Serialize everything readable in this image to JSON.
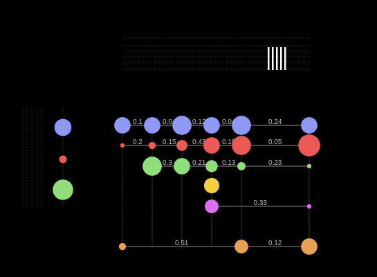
{
  "chart_data": {
    "type": "scatter",
    "title": "",
    "xlabel": "",
    "ylabel": "",
    "columns": 7,
    "rows": [
      {
        "color": "#8f98f5",
        "points": [
          {
            "col": 0,
            "size": 3
          },
          {
            "col": 1,
            "size": 3
          },
          {
            "col": 2,
            "size": 3.5
          },
          {
            "col": 3,
            "size": 3
          },
          {
            "col": 4,
            "size": 3.5
          },
          {
            "col": 6,
            "size": 3
          }
        ],
        "edges": [
          {
            "from": 0,
            "to": 1,
            "label": "0.1"
          },
          {
            "from": 1,
            "to": 2,
            "label": "0.04"
          },
          {
            "from": 2,
            "to": 3,
            "label": "0.12"
          },
          {
            "from": 3,
            "to": 4,
            "label": "0.04"
          },
          {
            "from": 4,
            "to": 6,
            "label": "0.24"
          }
        ]
      },
      {
        "color": "#ec5a57",
        "points": [
          {
            "col": 0,
            "size": 0.8
          },
          {
            "col": 1,
            "size": 1.3
          },
          {
            "col": 2,
            "size": 2
          },
          {
            "col": 3,
            "size": 3
          },
          {
            "col": 4,
            "size": 3.5
          },
          {
            "col": 6,
            "size": 4
          }
        ],
        "edges": [
          {
            "from": 0,
            "to": 1,
            "label": "0.2"
          },
          {
            "from": 1,
            "to": 2,
            "label": "0.15"
          },
          {
            "from": 2,
            "to": 3,
            "label": "0.43"
          },
          {
            "from": 3,
            "to": 4,
            "label": "0.19"
          },
          {
            "from": 4,
            "to": 6,
            "label": "0.05"
          }
        ]
      },
      {
        "color": "#90de7a",
        "points": [
          {
            "col": 1,
            "size": 3.5
          },
          {
            "col": 2,
            "size": 3
          },
          {
            "col": 3,
            "size": 2.2
          },
          {
            "col": 4,
            "size": 1.5
          },
          {
            "col": 6,
            "size": 0.8
          }
        ],
        "edges": [
          {
            "from": 1,
            "to": 2,
            "label": "0.3"
          },
          {
            "from": 2,
            "to": 3,
            "label": "0.21"
          },
          {
            "from": 3,
            "to": 4,
            "label": "0.13"
          },
          {
            "from": 4,
            "to": 6,
            "label": "0.23"
          }
        ]
      },
      {
        "color": "#f4d03f",
        "points": [
          {
            "col": 3,
            "size": 2.8
          }
        ],
        "edges": []
      },
      {
        "color": "#df6ef2",
        "points": [
          {
            "col": 3,
            "size": 2.5
          },
          {
            "col": 6,
            "size": 0.8
          }
        ],
        "edges": [
          {
            "from": 3,
            "to": 6,
            "label": "0.33"
          }
        ]
      },
      {
        "color": "#e8a055",
        "points": [
          {
            "col": 0,
            "size": 1.3
          },
          {
            "col": 4,
            "size": 2.5
          },
          {
            "col": 6,
            "size": 3
          }
        ],
        "edges": [
          {
            "from": 0,
            "to": 4,
            "label": "0.51"
          },
          {
            "from": 4,
            "to": 6,
            "label": "0.12"
          }
        ]
      }
    ],
    "legend_sizes": [
      {
        "color": "#8f98f5",
        "size": 4
      },
      {
        "color": "#ec5a57",
        "size": 1.8
      },
      {
        "color": "#90de7a",
        "size": 4.8
      }
    ]
  }
}
